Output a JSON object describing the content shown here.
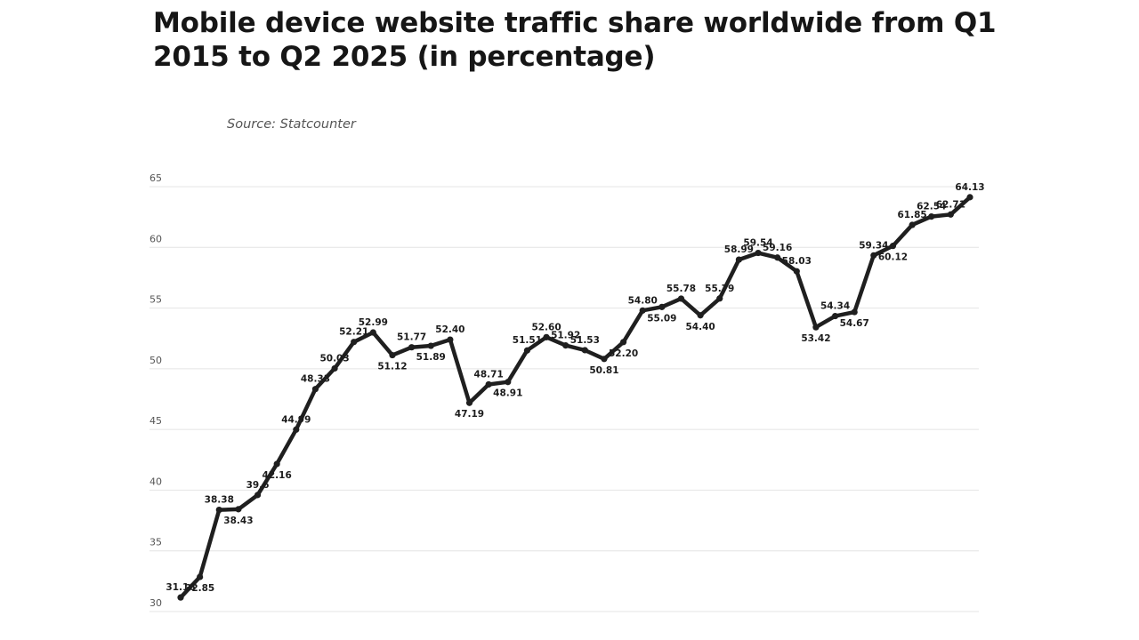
{
  "title": "Mobile device website traffic share worldwide from Q1 2015 to Q2 2025 (in percentage)",
  "source": "Source: Statcounter",
  "colors": {
    "line": "#1f1f1f",
    "grid": "#e4e4e4",
    "text": "#1c1c1c"
  },
  "chart_data": {
    "type": "line",
    "title": "Mobile device website traffic share worldwide from Q1 2015 to Q2 2025 (in percentage)",
    "xlabel": "",
    "ylabel": "",
    "ylim": [
      30,
      65
    ],
    "yticks": [
      30,
      35,
      40,
      45,
      50,
      55,
      60,
      65
    ],
    "grid": true,
    "legend": "none",
    "series": [
      {
        "values": [
          31.16,
          32.85,
          38.38,
          38.43,
          39.6,
          42.16,
          44.99,
          48.33,
          50.03,
          52.21,
          52.99,
          51.12,
          51.77,
          51.89,
          52.4,
          47.19,
          48.71,
          48.91,
          51.51,
          52.6,
          51.92,
          51.53,
          50.81,
          52.2,
          54.8,
          55.09,
          55.78,
          54.4,
          55.79,
          58.99,
          59.54,
          59.16,
          58.03,
          53.42,
          54.34,
          54.67,
          59.34,
          60.12,
          61.85,
          62.54,
          62.71,
          64.13
        ],
        "labels": [
          "31.16",
          "32.85",
          "38.38",
          "38.43",
          "39.6",
          "42.16",
          "44.99",
          "48.33",
          "50.03",
          "52.21",
          "52.99",
          "51.12",
          "51.77",
          "51.89",
          "52.40",
          "47.19",
          "48.71",
          "48.91",
          "51.51",
          "52.60",
          "51.92",
          "51.53",
          "50.81",
          "52.20",
          "54.80",
          "55.09",
          "55.78",
          "54.40",
          "55.79",
          "58.99",
          "59.54",
          "59.16",
          "58.03",
          "53.42",
          "54.34",
          "54.67",
          "59.34",
          "60.12",
          "61.85",
          "62.54",
          "62.71",
          "64.13"
        ]
      }
    ]
  }
}
